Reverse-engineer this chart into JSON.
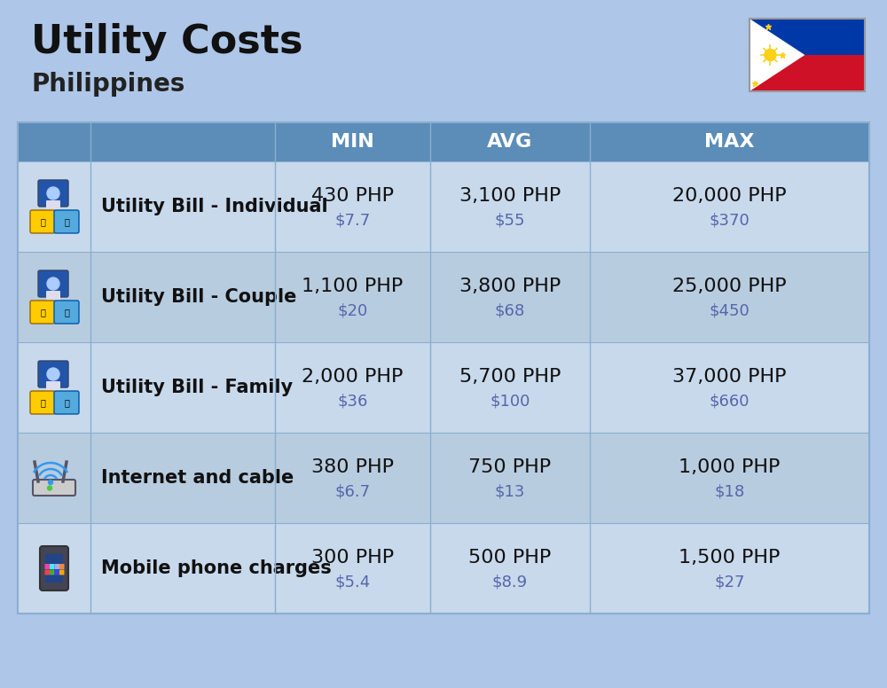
{
  "title": "Utility Costs",
  "subtitle": "Philippines",
  "bg_color": "#aec6e8",
  "header_bg": "#5b8db8",
  "header_text_color": "#ffffff",
  "row_bg_light": "#c8d9ec",
  "row_bg_dark": "#b8cce0",
  "col_line_color": "#8aaecf",
  "rows": [
    {
      "label": "Utility Bill - Individual",
      "min_php": "430 PHP",
      "min_usd": "$7.7",
      "avg_php": "3,100 PHP",
      "avg_usd": "$55",
      "max_php": "20,000 PHP",
      "max_usd": "$370"
    },
    {
      "label": "Utility Bill - Couple",
      "min_php": "1,100 PHP",
      "min_usd": "$20",
      "avg_php": "3,800 PHP",
      "avg_usd": "$68",
      "max_php": "25,000 PHP",
      "max_usd": "$450"
    },
    {
      "label": "Utility Bill - Family",
      "min_php": "2,000 PHP",
      "min_usd": "$36",
      "avg_php": "5,700 PHP",
      "avg_usd": "$100",
      "max_php": "37,000 PHP",
      "max_usd": "$660"
    },
    {
      "label": "Internet and cable",
      "min_php": "380 PHP",
      "min_usd": "$6.7",
      "avg_php": "750 PHP",
      "avg_usd": "$13",
      "max_php": "1,000 PHP",
      "max_usd": "$18"
    },
    {
      "label": "Mobile phone charges",
      "min_php": "300 PHP",
      "min_usd": "$5.4",
      "avg_php": "500 PHP",
      "avg_usd": "$8.9",
      "max_php": "1,500 PHP",
      "max_usd": "$27"
    }
  ],
  "title_fontsize": 32,
  "subtitle_fontsize": 20,
  "header_fontsize": 16,
  "label_fontsize": 15,
  "value_fontsize": 16,
  "usd_fontsize": 13
}
